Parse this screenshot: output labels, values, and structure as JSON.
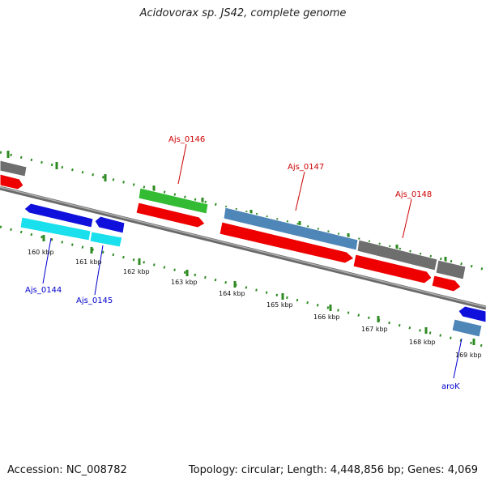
{
  "title": "Acidovorax sp. JS42, complete genome",
  "footer": {
    "accession": "Accession: NC_008782",
    "summary": "Topology: circular; Length: 4,448,856 bp; Genes: 4,069"
  },
  "colors": {
    "background": "#ffffff",
    "backbone": "#808080",
    "tick": "#2e8b22",
    "label_red": "#cc0000",
    "label_blue": "#0000cc",
    "scale_text": "#111111"
  },
  "scale_labels": [
    "160 kbp",
    "161 kbp",
    "162 kbp",
    "163 kbp",
    "164 kbp",
    "165 kbp",
    "166 kbp",
    "167 kbp",
    "168 kbp",
    "169 kbp"
  ],
  "gene_labels": {
    "ajs_0146": "Ajs_0146",
    "ajs_0147": "Ajs_0147",
    "ajs_0148": "Ajs_0148",
    "ajs_0144": "Ajs_0144",
    "ajs_0145": "Ajs_0145",
    "arok": "aroK"
  },
  "features": [
    {
      "id": "gray-left-outer",
      "color": "#6e6e6e",
      "role": "outer gray feature"
    },
    {
      "id": "red-left-cds",
      "color": "#ee0000",
      "role": "forward CDS"
    },
    {
      "id": "green-ajs0146",
      "color": "#33bb33",
      "role": "Ajs_0146 gene"
    },
    {
      "id": "red-ajs0146-cds",
      "color": "#ee0000",
      "role": "Ajs_0146 CDS"
    },
    {
      "id": "steelblue-ajs0147",
      "color": "#4f86b8",
      "role": "Ajs_0147 gene"
    },
    {
      "id": "red-ajs0147-cds",
      "color": "#ee0000",
      "role": "Ajs_0147 CDS"
    },
    {
      "id": "gray-ajs0148",
      "color": "#6e6e6e",
      "role": "Ajs_0148 gene"
    },
    {
      "id": "red-ajs0148-cds",
      "color": "#ee0000",
      "role": "Ajs_0148 CDS"
    },
    {
      "id": "blue-ajs0144",
      "color": "#1010dd",
      "role": "Ajs_0144 gene"
    },
    {
      "id": "cyan-ajs0144-cds",
      "color": "#1ae0ee",
      "role": "Ajs_0144 CDS"
    },
    {
      "id": "blue-ajs0145",
      "color": "#1010dd",
      "role": "Ajs_0145 gene"
    },
    {
      "id": "cyan-ajs0145-cds",
      "color": "#1ae0ee",
      "role": "Ajs_0145 CDS"
    },
    {
      "id": "blue-arok",
      "color": "#1010dd",
      "role": "aroK gene"
    },
    {
      "id": "steelblue-arok-cds",
      "color": "#4f86b8",
      "role": "aroK CDS"
    }
  ]
}
